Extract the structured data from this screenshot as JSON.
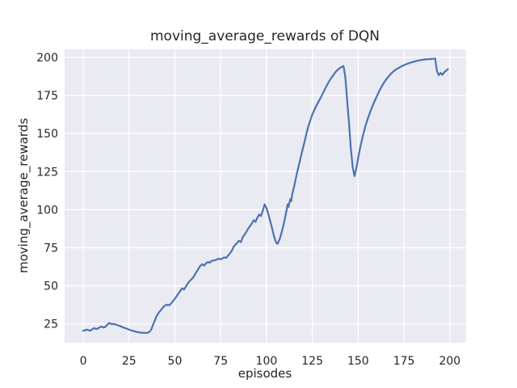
{
  "figure": {
    "background": "#ffffff"
  },
  "chart_data": {
    "type": "line",
    "title": "moving_average_rewards of DQN",
    "xlabel": "episodes",
    "ylabel": "moving_average_rewards",
    "x_ticks": [
      0,
      25,
      50,
      75,
      100,
      125,
      150,
      175,
      200
    ],
    "y_ticks": [
      25,
      50,
      75,
      100,
      125,
      150,
      175,
      200
    ],
    "xlim": [
      -10.15,
      208.9
    ],
    "ylim": [
      12.6,
      205.3
    ],
    "grid": true,
    "legend": false,
    "colors": {
      "axes_background": "#EAEAF2",
      "gridline": "#FFFFFF",
      "text": "#262626",
      "line": "#4C72B0"
    },
    "series": [
      {
        "name": "moving_average_rewards",
        "color": "#4C72B0",
        "points": [
          [
            0,
            20.5
          ],
          [
            1,
            20.8
          ],
          [
            2,
            21.2
          ],
          [
            3,
            20.8
          ],
          [
            4,
            20.6
          ],
          [
            5,
            21.5
          ],
          [
            6,
            22.2
          ],
          [
            7,
            21.6
          ],
          [
            8,
            21.9
          ],
          [
            9,
            22.8
          ],
          [
            10,
            23.2
          ],
          [
            11,
            22.6
          ],
          [
            12,
            23
          ],
          [
            13,
            24.2
          ],
          [
            14,
            25.5
          ],
          [
            15,
            25.1
          ],
          [
            16,
            24.8
          ],
          [
            17,
            24.9
          ],
          [
            18,
            24.4
          ],
          [
            19,
            24
          ],
          [
            20,
            23.6
          ],
          [
            22,
            22.6
          ],
          [
            24,
            21.7
          ],
          [
            26,
            20.8
          ],
          [
            28,
            20.1
          ],
          [
            30,
            19.5
          ],
          [
            32,
            19.2
          ],
          [
            34,
            19
          ],
          [
            35,
            19.1
          ],
          [
            36,
            19.6
          ],
          [
            37,
            21
          ],
          [
            38,
            24
          ],
          [
            39,
            27
          ],
          [
            40,
            30
          ],
          [
            41,
            32
          ],
          [
            42,
            33.5
          ],
          [
            43,
            35
          ],
          [
            44,
            36.5
          ],
          [
            45,
            37.3
          ],
          [
            46,
            37.6
          ],
          [
            47,
            37.2
          ],
          [
            48,
            38.5
          ],
          [
            49,
            40
          ],
          [
            50,
            41.5
          ],
          [
            51,
            43.2
          ],
          [
            52,
            45
          ],
          [
            53,
            46.8
          ],
          [
            54,
            48.3
          ],
          [
            55,
            47.6
          ],
          [
            56,
            49.5
          ],
          [
            57,
            51.5
          ],
          [
            58,
            53
          ],
          [
            59,
            54.2
          ],
          [
            60,
            55.5
          ],
          [
            61,
            57.5
          ],
          [
            62,
            59.5
          ],
          [
            63,
            61.5
          ],
          [
            64,
            63.3
          ],
          [
            65,
            64.2
          ],
          [
            66,
            63.2
          ],
          [
            67,
            64.8
          ],
          [
            68,
            65.6
          ],
          [
            69,
            65.2
          ],
          [
            70,
            66.3
          ],
          [
            71,
            66.6
          ],
          [
            72,
            66.8
          ],
          [
            73,
            67.3
          ],
          [
            74,
            67.9
          ],
          [
            75,
            67.3
          ],
          [
            76,
            68.1
          ],
          [
            77,
            68.6
          ],
          [
            78,
            68.3
          ],
          [
            79,
            69.8
          ],
          [
            80,
            71.2
          ],
          [
            81,
            72.8
          ],
          [
            82,
            75.5
          ],
          [
            83,
            77
          ],
          [
            84,
            78.2
          ],
          [
            85,
            79.6
          ],
          [
            86,
            78.7
          ],
          [
            87,
            81.8
          ],
          [
            88,
            83.5
          ],
          [
            89,
            85.5
          ],
          [
            90,
            87.5
          ],
          [
            91,
            89.2
          ],
          [
            92,
            91
          ],
          [
            93,
            93
          ],
          [
            94,
            92
          ],
          [
            95,
            94.8
          ],
          [
            96,
            96.8
          ],
          [
            97,
            95.8
          ],
          [
            98,
            99.5
          ],
          [
            99,
            103.5
          ],
          [
            100,
            101
          ],
          [
            101,
            97
          ],
          [
            102,
            92.5
          ],
          [
            103,
            88
          ],
          [
            104,
            83
          ],
          [
            105,
            79
          ],
          [
            106,
            77.5
          ],
          [
            107,
            80
          ],
          [
            108,
            84
          ],
          [
            109,
            88.5
          ],
          [
            110,
            94
          ],
          [
            111,
            100
          ],
          [
            111.5,
            103.5
          ],
          [
            112,
            101.8
          ],
          [
            113,
            107
          ],
          [
            113.5,
            105.5
          ],
          [
            114,
            110
          ],
          [
            115,
            115
          ],
          [
            116,
            120.5
          ],
          [
            117,
            126
          ],
          [
            118,
            131
          ],
          [
            119,
            136
          ],
          [
            120,
            141
          ],
          [
            121,
            146
          ],
          [
            122,
            151
          ],
          [
            123,
            155.5
          ],
          [
            124,
            159
          ],
          [
            125,
            162.5
          ],
          [
            126,
            165.2
          ],
          [
            127,
            167.8
          ],
          [
            128,
            170
          ],
          [
            129,
            172.3
          ],
          [
            130,
            174.5
          ],
          [
            131,
            177
          ],
          [
            132,
            179.5
          ],
          [
            133,
            181.8
          ],
          [
            134,
            184
          ],
          [
            135,
            185.8
          ],
          [
            136,
            187.5
          ],
          [
            137,
            189.3
          ],
          [
            138,
            190.8
          ],
          [
            139,
            192
          ],
          [
            140,
            193
          ],
          [
            141,
            193.8
          ],
          [
            142,
            194.3
          ],
          [
            143,
            187
          ],
          [
            144,
            172
          ],
          [
            145,
            157
          ],
          [
            146,
            140
          ],
          [
            147,
            128
          ],
          [
            148,
            122
          ],
          [
            149,
            127
          ],
          [
            150,
            134
          ],
          [
            151,
            140
          ],
          [
            152,
            145.5
          ],
          [
            153,
            150.5
          ],
          [
            154,
            155
          ],
          [
            155,
            158.8
          ],
          [
            156,
            162.3
          ],
          [
            157,
            165.5
          ],
          [
            158,
            168.5
          ],
          [
            159,
            171.3
          ],
          [
            160,
            174
          ],
          [
            161,
            176.5
          ],
          [
            162,
            179
          ],
          [
            163,
            181.2
          ],
          [
            164,
            183.2
          ],
          [
            165,
            185
          ],
          [
            166,
            186.6
          ],
          [
            167,
            188
          ],
          [
            168,
            189.4
          ],
          [
            169,
            190.5
          ],
          [
            170,
            191.5
          ],
          [
            171,
            192.3
          ],
          [
            172,
            193
          ],
          [
            173,
            193.7
          ],
          [
            174,
            194.3
          ],
          [
            175,
            194.9
          ],
          [
            176,
            195.4
          ],
          [
            177,
            195.9
          ],
          [
            178,
            196.3
          ],
          [
            179,
            196.7
          ],
          [
            180,
            197
          ],
          [
            181,
            197.4
          ],
          [
            182,
            197.7
          ],
          [
            183,
            198
          ],
          [
            184,
            198.2
          ],
          [
            185,
            198.4
          ],
          [
            186,
            198.6
          ],
          [
            187,
            198.7
          ],
          [
            188,
            198.8
          ],
          [
            189,
            198.9
          ],
          [
            190,
            199
          ],
          [
            191,
            199.1
          ],
          [
            192,
            199.2
          ],
          [
            193,
            191
          ],
          [
            194,
            188.3
          ],
          [
            195,
            189.8
          ],
          [
            196,
            188.5
          ],
          [
            197,
            190.3
          ],
          [
            198,
            191.3
          ],
          [
            199,
            192.3
          ]
        ]
      }
    ]
  }
}
